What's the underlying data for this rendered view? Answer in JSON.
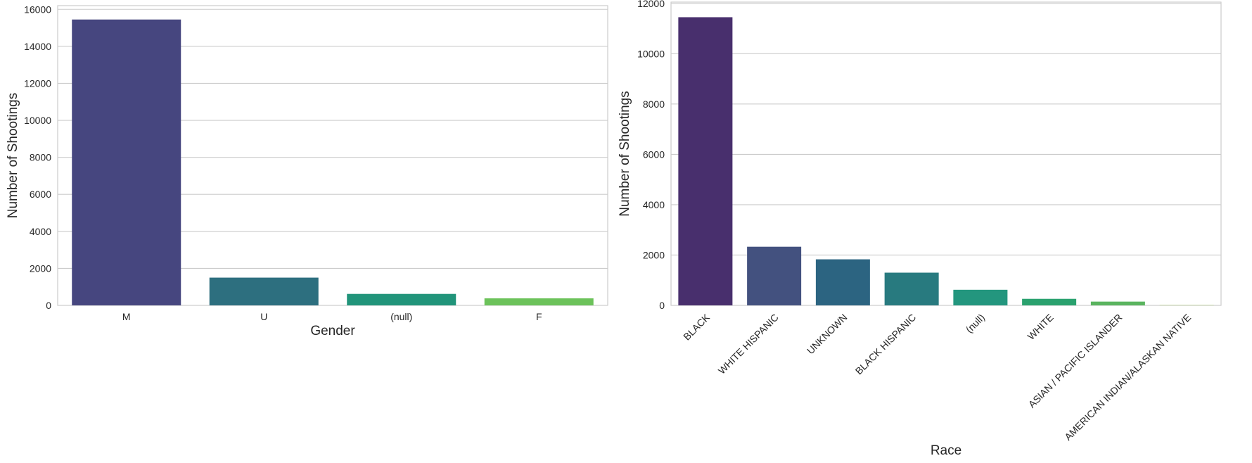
{
  "chart_data": [
    {
      "type": "bar",
      "title": "",
      "xlabel": "Gender",
      "ylabel": "Number of Shootings",
      "categories": [
        "M",
        "U",
        "(null)",
        "F"
      ],
      "values": [
        15450,
        1500,
        620,
        380
      ],
      "ylim": [
        0,
        16200
      ],
      "yticks": [
        0,
        2000,
        4000,
        6000,
        8000,
        10000,
        12000,
        14000,
        16000
      ],
      "colors": [
        "#46467f",
        "#2d6f7f",
        "#21947a",
        "#6cc25a"
      ],
      "grid": true,
      "legend": "none"
    },
    {
      "type": "bar",
      "title": "",
      "xlabel": "Race",
      "ylabel": "Number of Shootings",
      "categories": [
        "BLACK",
        "WHITE HISPANIC",
        "UNKNOWN",
        "BLACK HISPANIC",
        "(null)",
        "WHITE",
        "ASIAN / PACIFIC ISLANDER",
        "AMERICAN INDIAN/ALASKAN NATIVE"
      ],
      "values": [
        11450,
        2330,
        1830,
        1300,
        620,
        260,
        150,
        10
      ],
      "ylim": [
        0,
        12050
      ],
      "yticks": [
        0,
        2000,
        4000,
        6000,
        8000,
        10000,
        12000
      ],
      "colors": [
        "#482f6d",
        "#43517f",
        "#2c6481",
        "#287a7f",
        "#23967e",
        "#2aa16e",
        "#5ab45f",
        "#9ccf3f"
      ],
      "grid": true,
      "legend": "none"
    }
  ]
}
